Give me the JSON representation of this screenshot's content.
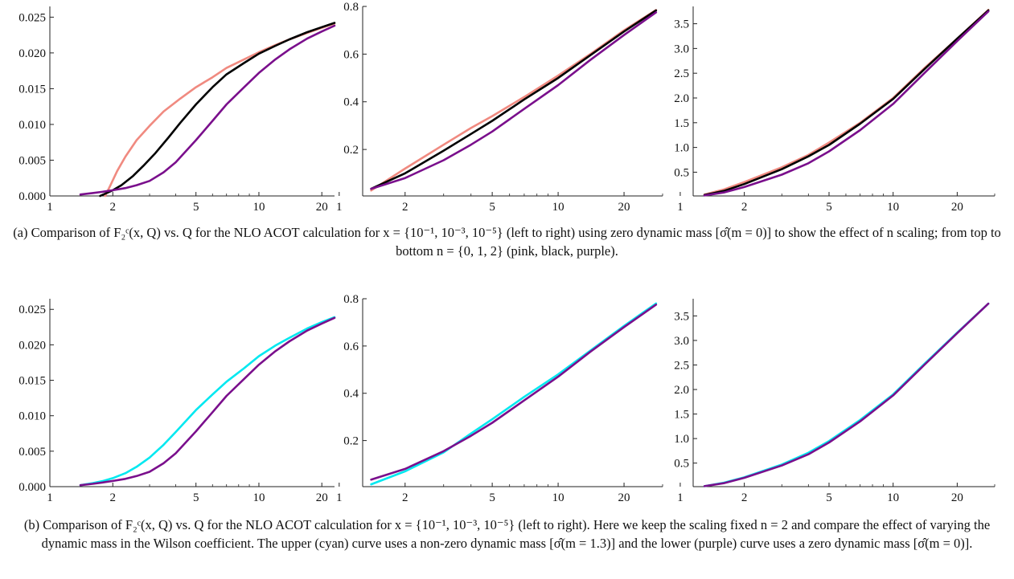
{
  "colors": {
    "pink": "#f08a80",
    "black": "#000000",
    "purple": "#7a0f8c",
    "cyan": "#00e8f0",
    "axis": "#222222"
  },
  "captions": {
    "a": "(a)  Comparison of F₂ᶜ(x, Q) vs. Q for the NLO ACOT calculation for x = {10⁻¹, 10⁻³, 10⁻⁵} (left to right) using zero dynamic mass [σ̂(m = 0)] to show the effect of n scaling; from top to bottom n = {0, 1, 2} (pink, black, purple).",
    "b": "(b)  Comparison of F₂ᶜ(x, Q) vs. Q for the NLO ACOT calculation for x = {10⁻¹, 10⁻³, 10⁻⁵} (left to right). Here we keep the scaling fixed n = 2 and compare the effect of varying the dynamic mass in the Wilson coefficient. The upper (cyan) curve uses a non-zero dynamic mass [σ̂(m = 1.3)] and the lower (purple) curve uses a zero dynamic mass [σ̂(m = 0)]."
  },
  "chart_data": [
    {
      "type": "line",
      "panel": "a-left",
      "xscale": "log",
      "xlim": [
        1,
        23
      ],
      "ylim": [
        0,
        0.0265
      ],
      "xticks": [
        1,
        2,
        5,
        10,
        20
      ],
      "xtick_labels": [
        "1",
        "2",
        "5",
        "10",
        "20"
      ],
      "yticks": [
        0,
        0.005,
        0.01,
        0.015,
        0.02,
        0.025
      ],
      "ytick_labels": [
        "0.000",
        "0.005",
        "0.010",
        "0.015",
        "0.020",
        "0.025"
      ],
      "series": [
        {
          "color": "pink",
          "x": [
            1.84,
            1.95,
            2.1,
            2.3,
            2.6,
            3.0,
            3.5,
            4.2,
            5,
            6,
            7,
            8.5,
            10,
            12,
            14,
            17,
            20,
            23
          ],
          "y": [
            0,
            0.0015,
            0.0035,
            0.0055,
            0.0078,
            0.0098,
            0.0118,
            0.0136,
            0.0152,
            0.0166,
            0.0179,
            0.0191,
            0.0201,
            0.0211,
            0.0219,
            0.0228,
            0.0235,
            0.0241
          ]
        },
        {
          "color": "black",
          "x": [
            1.74,
            2.0,
            2.2,
            2.5,
            2.8,
            3.2,
            3.7,
            4.2,
            5,
            6,
            7,
            8.5,
            10,
            12,
            14,
            17,
            20,
            23
          ],
          "y": [
            0,
            0.0008,
            0.0015,
            0.0028,
            0.0042,
            0.006,
            0.0082,
            0.0102,
            0.0128,
            0.0152,
            0.017,
            0.0186,
            0.0199,
            0.021,
            0.0219,
            0.0229,
            0.0236,
            0.0242
          ]
        },
        {
          "color": "purple",
          "x": [
            1.4,
            1.6,
            1.8,
            2.0,
            2.3,
            2.6,
            3.0,
            3.5,
            4.0,
            5,
            6,
            7,
            8.5,
            10,
            12,
            14,
            17,
            20,
            23
          ],
          "y": [
            0.0002,
            0.0004,
            0.0006,
            0.0008,
            0.0011,
            0.0015,
            0.0021,
            0.0033,
            0.0047,
            0.0078,
            0.0105,
            0.0128,
            0.0152,
            0.0172,
            0.0191,
            0.0205,
            0.022,
            0.023,
            0.0238
          ]
        }
      ]
    },
    {
      "type": "line",
      "panel": "a-middle",
      "xscale": "log",
      "xlim": [
        1.28,
        30
      ],
      "ylim": [
        0.005,
        0.8
      ],
      "xticks": [
        1,
        2,
        5,
        10,
        20
      ],
      "xtick_labels": [
        "1",
        "2",
        "5",
        "10",
        "20"
      ],
      "yticks": [
        0.2,
        0.4,
        0.6,
        0.8
      ],
      "ytick_labels": [
        "0.2",
        "0.4",
        "0.6",
        "0.8"
      ],
      "series": [
        {
          "color": "pink",
          "x": [
            1.4,
            2,
            3,
            4,
            5,
            7,
            10,
            14,
            20,
            28
          ],
          "y": [
            0.028,
            0.12,
            0.22,
            0.29,
            0.34,
            0.42,
            0.51,
            0.6,
            0.7,
            0.785
          ]
        },
        {
          "color": "black",
          "x": [
            1.4,
            2,
            3,
            4,
            5,
            7,
            10,
            14,
            20,
            28
          ],
          "y": [
            0.035,
            0.1,
            0.195,
            0.265,
            0.32,
            0.41,
            0.5,
            0.595,
            0.695,
            0.783
          ]
        },
        {
          "color": "purple",
          "x": [
            1.4,
            2,
            3,
            4,
            5,
            7,
            10,
            14,
            20,
            28
          ],
          "y": [
            0.035,
            0.08,
            0.155,
            0.22,
            0.275,
            0.37,
            0.47,
            0.575,
            0.68,
            0.775
          ]
        }
      ]
    },
    {
      "type": "line",
      "panel": "a-right",
      "xscale": "log",
      "xlim": [
        1.15,
        30
      ],
      "ylim": [
        0.02,
        3.85
      ],
      "xticks": [
        1,
        2,
        5,
        10,
        20
      ],
      "xtick_labels": [
        "1",
        "2",
        "5",
        "10",
        "20"
      ],
      "yticks": [
        0.5,
        1.0,
        1.5,
        2.0,
        2.5,
        3.0,
        3.5
      ],
      "ytick_labels": [
        "0.5",
        "1.0",
        "1.5",
        "2.0",
        "2.5",
        "3.0",
        "3.5"
      ],
      "series": [
        {
          "color": "pink",
          "x": [
            1.3,
            1.6,
            2,
            3,
            4,
            5,
            7,
            10,
            14,
            20,
            28
          ],
          "y": [
            0.05,
            0.15,
            0.3,
            0.6,
            0.85,
            1.1,
            1.5,
            2.0,
            2.6,
            3.2,
            3.78
          ]
        },
        {
          "color": "black",
          "x": [
            1.3,
            1.6,
            2,
            3,
            4,
            5,
            7,
            10,
            14,
            20,
            28
          ],
          "y": [
            0.04,
            0.12,
            0.26,
            0.56,
            0.82,
            1.05,
            1.48,
            1.98,
            2.58,
            3.2,
            3.77
          ]
        },
        {
          "color": "purple",
          "x": [
            1.3,
            1.6,
            2,
            3,
            4,
            5,
            7,
            10,
            14,
            20,
            28
          ],
          "y": [
            0.03,
            0.09,
            0.2,
            0.45,
            0.68,
            0.92,
            1.35,
            1.88,
            2.5,
            3.15,
            3.75
          ]
        }
      ]
    },
    {
      "type": "line",
      "panel": "b-left",
      "xscale": "log",
      "xlim": [
        1,
        23
      ],
      "ylim": [
        0,
        0.0265
      ],
      "xticks": [
        1,
        2,
        5,
        10,
        20
      ],
      "xtick_labels": [
        "1",
        "2",
        "5",
        "10",
        "20"
      ],
      "yticks": [
        0,
        0.005,
        0.01,
        0.015,
        0.02,
        0.025
      ],
      "ytick_labels": [
        "0.000",
        "0.005",
        "0.010",
        "0.015",
        "0.020",
        "0.025"
      ],
      "series": [
        {
          "color": "cyan",
          "x": [
            1.4,
            1.6,
            1.8,
            2.0,
            2.3,
            2.6,
            3.0,
            3.5,
            4.0,
            5,
            6,
            7,
            8.5,
            10,
            12,
            14,
            17,
            20,
            23
          ],
          "y": [
            0.0002,
            0.0005,
            0.0008,
            0.0012,
            0.0019,
            0.0028,
            0.0041,
            0.0059,
            0.0077,
            0.0108,
            0.013,
            0.0148,
            0.0167,
            0.0184,
            0.0199,
            0.021,
            0.0223,
            0.0232,
            0.0239
          ]
        },
        {
          "color": "purple",
          "x": [
            1.4,
            1.6,
            1.8,
            2.0,
            2.3,
            2.6,
            3.0,
            3.5,
            4.0,
            5,
            6,
            7,
            8.5,
            10,
            12,
            14,
            17,
            20,
            23
          ],
          "y": [
            0.0002,
            0.0004,
            0.0006,
            0.0008,
            0.0011,
            0.0015,
            0.0021,
            0.0033,
            0.0047,
            0.0078,
            0.0105,
            0.0128,
            0.0152,
            0.0172,
            0.0191,
            0.0205,
            0.022,
            0.023,
            0.0238
          ]
        }
      ]
    },
    {
      "type": "line",
      "panel": "b-middle",
      "xscale": "log",
      "xlim": [
        1.28,
        30
      ],
      "ylim": [
        0.005,
        0.8
      ],
      "xticks": [
        1,
        2,
        5,
        10,
        20
      ],
      "xtick_labels": [
        "1",
        "2",
        "5",
        "10",
        "20"
      ],
      "yticks": [
        0.2,
        0.4,
        0.6,
        0.8
      ],
      "ytick_labels": [
        "0.2",
        "0.4",
        "0.6",
        "0.8"
      ],
      "series": [
        {
          "color": "cyan",
          "x": [
            1.4,
            2,
            3,
            4,
            5,
            7,
            10,
            14,
            20,
            28
          ],
          "y": [
            0.015,
            0.07,
            0.15,
            0.23,
            0.29,
            0.385,
            0.48,
            0.58,
            0.685,
            0.78
          ]
        },
        {
          "color": "purple",
          "x": [
            1.4,
            2,
            3,
            4,
            5,
            7,
            10,
            14,
            20,
            28
          ],
          "y": [
            0.035,
            0.08,
            0.155,
            0.22,
            0.275,
            0.37,
            0.47,
            0.575,
            0.68,
            0.775
          ]
        }
      ]
    },
    {
      "type": "line",
      "panel": "b-right",
      "xscale": "log",
      "xlim": [
        1.15,
        30
      ],
      "ylim": [
        0.02,
        3.85
      ],
      "xticks": [
        1,
        2,
        5,
        10,
        20
      ],
      "xtick_labels": [
        "1",
        "2",
        "5",
        "10",
        "20"
      ],
      "yticks": [
        0.5,
        1.0,
        1.5,
        2.0,
        2.5,
        3.0,
        3.5
      ],
      "ytick_labels": [
        "0.5",
        "1.0",
        "1.5",
        "2.0",
        "2.5",
        "3.0",
        "3.5"
      ],
      "series": [
        {
          "color": "cyan",
          "x": [
            1.3,
            1.6,
            2,
            3,
            4,
            5,
            7,
            10,
            14,
            20,
            28
          ],
          "y": [
            0.03,
            0.1,
            0.21,
            0.47,
            0.71,
            0.95,
            1.38,
            1.9,
            2.52,
            3.16,
            3.75
          ]
        },
        {
          "color": "purple",
          "x": [
            1.3,
            1.6,
            2,
            3,
            4,
            5,
            7,
            10,
            14,
            20,
            28
          ],
          "y": [
            0.03,
            0.09,
            0.2,
            0.45,
            0.68,
            0.92,
            1.35,
            1.88,
            2.5,
            3.15,
            3.75
          ]
        }
      ]
    }
  ]
}
